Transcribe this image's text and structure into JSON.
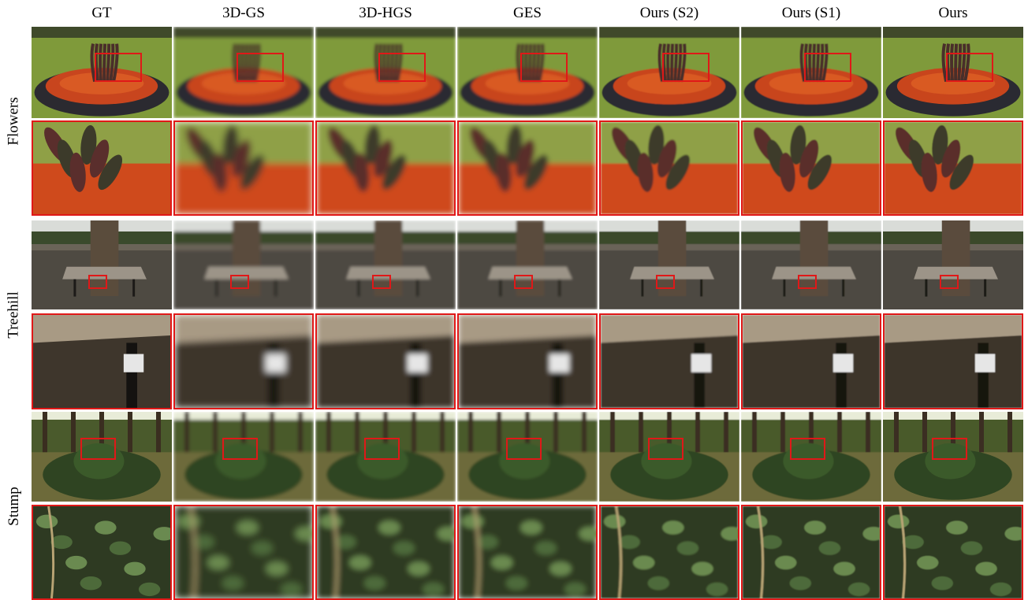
{
  "columns": [
    "GT",
    "3D-GS",
    "3D-HGS",
    "GES",
    "Ours (S2)",
    "Ours (S1)",
    "Ours"
  ],
  "rows": [
    {
      "label": "Flowers",
      "scene": "flowers"
    },
    {
      "label": "Treehill",
      "scene": "treehill"
    },
    {
      "label": "Stump",
      "scene": "stump"
    }
  ],
  "colors": {
    "highlight_box": "#e01818",
    "background": "#ffffff"
  }
}
